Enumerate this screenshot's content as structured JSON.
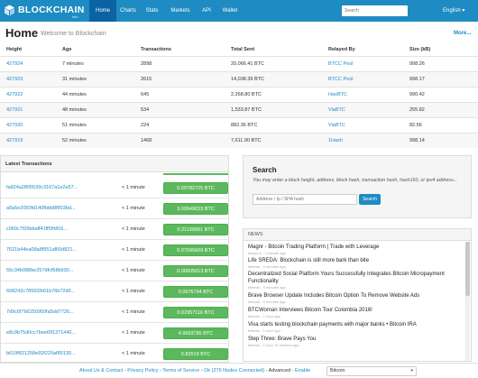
{
  "brand": {
    "name": "BLOCKCHAIN",
    "sub": "info"
  },
  "nav": {
    "items": [
      "Home",
      "Charts",
      "Stats",
      "Markets",
      "API",
      "Wallet"
    ],
    "search_placeholder": "Search",
    "language": "English",
    "language_caret": "▾"
  },
  "page": {
    "title": "Home",
    "subtitle": "Welcome to Blockchain",
    "more": "More..."
  },
  "blocks": {
    "headers": [
      "Height",
      "Age",
      "Transactions",
      "Total Sent",
      "Relayed By",
      "Size (kB)"
    ],
    "rows": [
      [
        "427924",
        "7 minutes",
        "2898",
        "20,066.41 BTC",
        "BTCC Pool",
        "998.26"
      ],
      [
        "427923",
        "31 minutes",
        "2615",
        "14,038.39 BTC",
        "BTCC Pool",
        "998.17"
      ],
      [
        "427922",
        "44 minutes",
        "645",
        "2,268.80 BTC",
        "HaoBTC",
        "990.42"
      ],
      [
        "427921",
        "48 minutes",
        "534",
        "1,533.87 BTC",
        "ViaBTC",
        "255.82"
      ],
      [
        "427920",
        "51 minutes",
        "224",
        "882.36 BTC",
        "ViaBTC",
        "82.56"
      ],
      [
        "427919",
        "52 minutes",
        "1468",
        "7,611.90 BTC",
        "1Hash",
        "998.14"
      ]
    ]
  },
  "transactions": {
    "title": "Latest Transactions",
    "rows": [
      {
        "hash": "fa824a2805539c3167a1e2e57...",
        "time": "< 1 minute",
        "amount": "0.00782725 BTC"
      },
      {
        "hash": "a9a5e2050fd140fbbb8f803bd...",
        "time": "< 1 minute",
        "amount": "3.09949023 BTC"
      },
      {
        "hash": "c060c7f26bbaff41fff3fdf16...",
        "time": "< 1 minute",
        "amount": "0.21199961 BTC"
      },
      {
        "hash": "7621b44ea08a8f951af60d821...",
        "time": "< 1 minute",
        "amount": "0.07095609 BTC"
      },
      {
        "hash": "55c34b088be257dfcf58b930...",
        "time": "< 1 minute",
        "amount": "0.06605613 BTC"
      },
      {
        "hash": "608242c7855f2b61b76b72d0...",
        "time": "< 1 minute",
        "amount": "0.0076794 BTC"
      },
      {
        "hash": "7d9c6f7b6250950fa5dd7726...",
        "time": "< 1 minute",
        "amount": "0.02957116 BTC"
      },
      {
        "hash": "e8c9b75d0cc7beef0f1371440...",
        "time": "< 1 minute",
        "amount": "4.9993785 BTC"
      },
      {
        "hash": "b619f821258e92f220af89130...",
        "time": "< 1 minute",
        "amount": "0.83519 BTC"
      }
    ]
  },
  "search": {
    "title": "Search",
    "description": "You may enter a block height, address, block hash, transaction hash, hash160, or ipv4 address...",
    "placeholder": "Address / Ip / SHA hash",
    "button": "Search"
  },
  "news": {
    "title": "NEWS",
    "items": [
      {
        "title": "Magnr - Bitcoin Trading Platform | Trade with Leverage",
        "meta": "Magnr.io - 1 minute ago"
      },
      {
        "title": "Life SREDA: Blockchain is still more bark than bite",
        "meta": "btfeeds - 9 minutes ago"
      },
      {
        "title": "Decentralized Social Platform Yours Successfully Integrates Bitcoin Micropayment Functionality",
        "meta": "btfeeds - 9 minutes ago"
      },
      {
        "title": "Brave Browser Update Includes Bitcoin Option To Remove Website Ads",
        "meta": "btfeeds - 9 minutes ago"
      },
      {
        "title": "BTCWoman Interviews Bitcoin Tour Colombia 2016!",
        "meta": "btfeeds - 1 hour ago"
      },
      {
        "title": "Visa starts testing blockchain payments with major banks • Bitcoin IRA",
        "meta": "btfeeds - 1 hour ago"
      },
      {
        "title": "Step Three: Brave Pays You",
        "meta": "btfeeds - 1 hour 26 minutes ago"
      }
    ]
  },
  "footer": {
    "about": "About Us & Contact",
    "privacy": "Privacy Policy",
    "terms": "Terms of Service",
    "sep": " - ",
    "status": "Ok (276 Nodes Connected)",
    "advanced": "Advanced",
    "enable": "Enable",
    "currency": "Bitcoin",
    "currency_caret": "▾"
  },
  "colors": {
    "nav": "#1e8bc3",
    "nav_active": "#0b63a3",
    "amount": "#5cb85c",
    "link": "#1e8bc3"
  }
}
